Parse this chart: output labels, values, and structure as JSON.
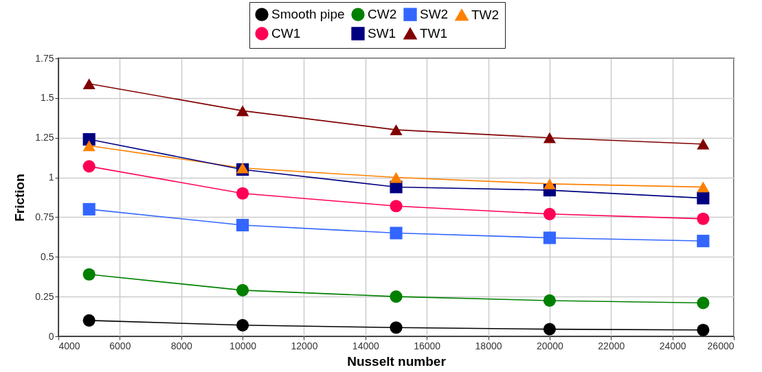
{
  "chart_data": {
    "type": "line",
    "xlabel": "Nusselt number",
    "ylabel": "Friction",
    "x": [
      5000,
      10000,
      15000,
      20000,
      25000
    ],
    "series": [
      {
        "name": "Smooth pipe",
        "color": "#000000",
        "marker": "circle",
        "values": [
          0.1,
          0.07,
          0.055,
          0.045,
          0.04
        ]
      },
      {
        "name": "CW2",
        "color": "#008000",
        "marker": "circle",
        "values": [
          0.39,
          0.29,
          0.25,
          0.225,
          0.21
        ]
      },
      {
        "name": "SW2",
        "color": "#3366ff",
        "marker": "square",
        "values": [
          0.8,
          0.7,
          0.65,
          0.62,
          0.6
        ]
      },
      {
        "name": "TW2",
        "color": "#ff8000",
        "marker": "triangle",
        "values": [
          1.2,
          1.06,
          1.0,
          0.96,
          0.94
        ]
      },
      {
        "name": "CW1",
        "color": "#ff0055",
        "marker": "circle",
        "values": [
          1.07,
          0.9,
          0.82,
          0.77,
          0.74
        ]
      },
      {
        "name": "SW1",
        "color": "#000080",
        "marker": "square",
        "values": [
          1.24,
          1.05,
          0.94,
          0.92,
          0.87
        ]
      },
      {
        "name": "TW1",
        "color": "#800000",
        "marker": "triangle",
        "values": [
          1.59,
          1.42,
          1.3,
          1.25,
          1.21
        ]
      }
    ],
    "xlim": [
      4000,
      26000
    ],
    "xticks": [
      4000,
      6000,
      8000,
      10000,
      12000,
      14000,
      16000,
      18000,
      20000,
      22000,
      24000,
      26000
    ],
    "ylim": [
      0,
      1.75
    ],
    "yticks": [
      0,
      0.25,
      0.5,
      0.75,
      1,
      1.25,
      1.5,
      1.75
    ],
    "grid": true,
    "legend": "top",
    "line_style": "solid"
  }
}
